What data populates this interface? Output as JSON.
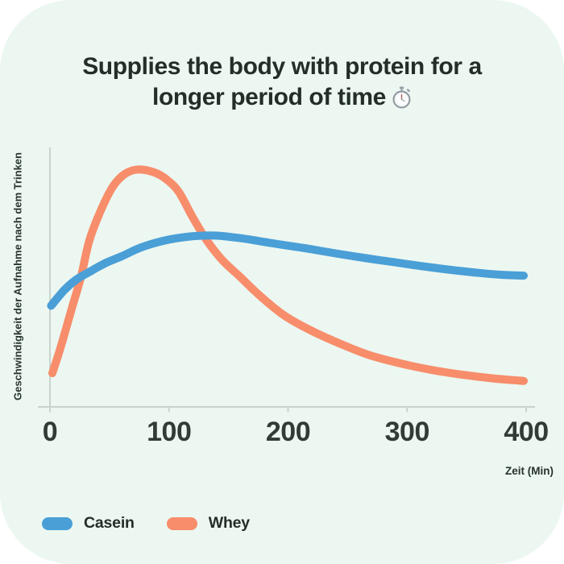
{
  "card": {
    "background": "#ecf7f1",
    "outer_background": "#ffffff"
  },
  "title": {
    "line1": "Supplies the body with protein for a",
    "line2": "longer period of time",
    "icon": "stopwatch-emoji",
    "color": "#242e29"
  },
  "chart_data": {
    "type": "line",
    "title": "Supplies the body with protein for a longer period of time",
    "xlabel": "Zeit (Min)",
    "ylabel": "Geschwindigkeit der Aufnahme nach dem Trinken",
    "xlim": [
      0,
      400
    ],
    "ylim": [
      0,
      100
    ],
    "x_ticks": [
      0,
      100,
      200,
      300,
      400
    ],
    "y_ticks": [],
    "grid": false,
    "legend_position": "bottom-left",
    "axis_color": "#c9d3cd",
    "tick_label_color": "#323b35",
    "series": [
      {
        "name": "Casein",
        "color": "#4a9fd7",
        "points": [
          [
            1,
            39
          ],
          [
            12,
            45
          ],
          [
            22,
            49
          ],
          [
            33,
            52
          ],
          [
            47,
            55.5
          ],
          [
            60,
            58
          ],
          [
            74,
            61
          ],
          [
            87,
            63
          ],
          [
            100,
            64.5
          ],
          [
            114,
            65.5
          ],
          [
            128,
            66
          ],
          [
            141,
            66
          ],
          [
            155,
            65.3
          ],
          [
            168,
            64.5
          ],
          [
            181,
            63.5
          ],
          [
            195,
            62.5
          ],
          [
            219,
            60.8
          ],
          [
            242,
            59
          ],
          [
            266,
            57.3
          ],
          [
            290,
            55.7
          ],
          [
            313,
            54.2
          ],
          [
            337,
            52.8
          ],
          [
            361,
            51.6
          ],
          [
            380,
            50.9
          ],
          [
            398,
            50.6
          ]
        ]
      },
      {
        "name": "Whey",
        "color": "#f78d6b",
        "points": [
          [
            2,
            13
          ],
          [
            9,
            23
          ],
          [
            19,
            39
          ],
          [
            26,
            50
          ],
          [
            33,
            64
          ],
          [
            43,
            76
          ],
          [
            53,
            85
          ],
          [
            63,
            89.8
          ],
          [
            74,
            91.5
          ],
          [
            87,
            90.5
          ],
          [
            97,
            88
          ],
          [
            108,
            83
          ],
          [
            120,
            73
          ],
          [
            132,
            64
          ],
          [
            145,
            56.5
          ],
          [
            160,
            50
          ],
          [
            176,
            43
          ],
          [
            196,
            35.5
          ],
          [
            219,
            29.5
          ],
          [
            243,
            24.5
          ],
          [
            268,
            20
          ],
          [
            294,
            16.8
          ],
          [
            320,
            14.3
          ],
          [
            345,
            12.5
          ],
          [
            372,
            11
          ],
          [
            398,
            10
          ]
        ]
      }
    ]
  }
}
